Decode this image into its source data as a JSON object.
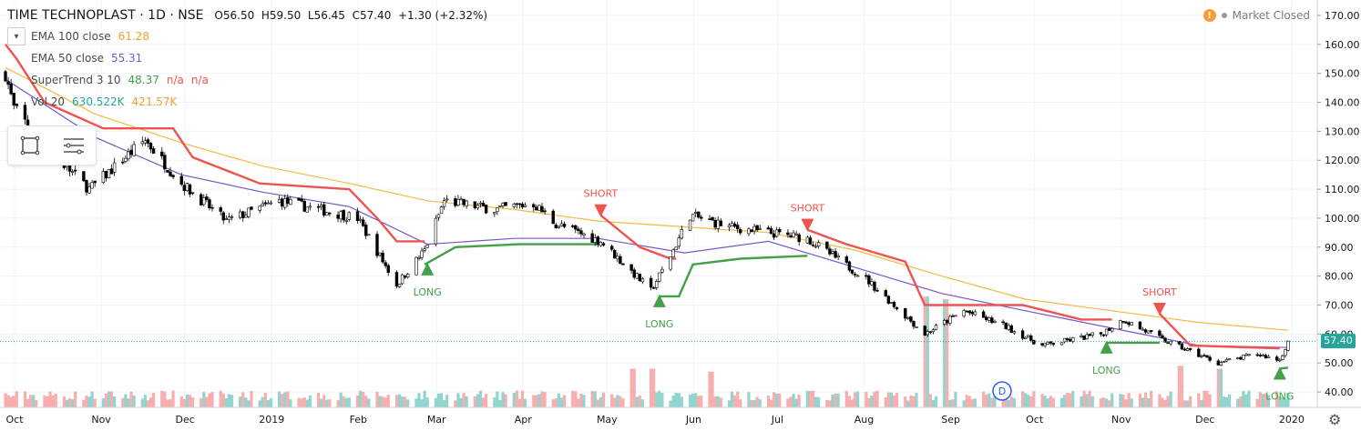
{
  "header": {
    "symbol_title": "TIME TECHNOPLAST · 1D · NSE",
    "open": "O56.50",
    "high": "H59.50",
    "low": "L56.45",
    "close": "C57.40",
    "change": "+1.30 (+2.32%)"
  },
  "indicators": [
    {
      "label": "EMA 100 close",
      "value": "61.28",
      "color": "#f0a030"
    },
    {
      "label": "EMA 50 close",
      "value": "55.31",
      "color": "#7b55c8"
    },
    {
      "label": "SuperTrend 3 10",
      "value": "48.37",
      "value2": "n/a",
      "value3": "n/a",
      "color": "#43a047"
    },
    {
      "label": "Vol 20",
      "value": "630.522K",
      "value2": "421.57K",
      "color": "#26a69a"
    }
  ],
  "market_status": "Market Closed",
  "last_price_tag": "57.40",
  "colors": {
    "up": "#26a69a",
    "down": "#ef5350",
    "candle": "#000000",
    "ema100": "#f5b942",
    "ema50": "#7b55c8",
    "st_up": "#43a047",
    "st_down": "#ef5350",
    "vol_up": "#7fcdc6",
    "vol_down": "#f5a0a0",
    "grid": "#f0f3fa"
  },
  "icons": {
    "toolbox_1": "select-rectangle-icon",
    "toolbox_2": "object-tree-icon",
    "settings": "gear-icon",
    "collapse": "chevron-down-icon",
    "alert": "alert-icon",
    "dividend": "dividend-marker-icon"
  },
  "dividend_marker": "D",
  "chart_data": {
    "type": "candlestick",
    "title": "TIME TECHNOPLAST · 1D · NSE",
    "y_ticks": [
      "170.00",
      "160.00",
      "150.00",
      "140.00",
      "130.00",
      "120.00",
      "110.00",
      "100.00",
      "90.00",
      "80.00",
      "70.00",
      "60.00",
      "50.00",
      "40.00"
    ],
    "x_tick_labels": [
      "Oct",
      "Nov",
      "Dec",
      "2019",
      "Feb",
      "Mar",
      "Apr",
      "May",
      "Jun",
      "Jul",
      "Aug",
      "Sep",
      "Oct",
      "Nov",
      "Dec",
      "2020"
    ],
    "ylim": [
      35,
      172
    ],
    "price_path": [
      [
        "2018-10-01",
        150
      ],
      [
        "2018-10-04",
        138
      ],
      [
        "2018-10-15",
        125
      ],
      [
        "2018-10-31",
        110
      ],
      [
        "2018-11-20",
        127
      ],
      [
        "2018-12-03",
        112
      ],
      [
        "2018-12-19",
        99
      ],
      [
        "2019-01-07",
        106
      ],
      [
        "2019-01-21",
        103
      ],
      [
        "2019-02-04",
        100
      ],
      [
        "2019-02-18",
        77
      ],
      [
        "2019-02-28",
        89
      ],
      [
        "2019-03-07",
        106
      ],
      [
        "2019-03-25",
        103
      ],
      [
        "2019-04-08",
        105
      ],
      [
        "2019-04-16",
        98
      ],
      [
        "2019-05-02",
        92
      ],
      [
        "2019-05-20",
        75
      ],
      [
        "2019-05-27",
        87
      ],
      [
        "2019-06-03",
        101
      ],
      [
        "2019-06-17",
        97
      ],
      [
        "2019-07-15",
        93
      ],
      [
        "2019-08-05",
        79
      ],
      [
        "2019-08-26",
        60
      ],
      [
        "2019-09-09",
        68
      ],
      [
        "2019-09-23",
        63
      ],
      [
        "2019-10-07",
        56
      ],
      [
        "2019-10-28",
        60
      ],
      [
        "2019-11-05",
        65
      ],
      [
        "2019-11-19",
        58
      ],
      [
        "2019-12-09",
        50
      ],
      [
        "2019-12-23",
        53
      ],
      [
        "2019-12-31",
        51
      ],
      [
        "2020-01-03",
        57.4
      ]
    ],
    "series": [
      {
        "name": "EMA 100 close",
        "values": [
          [
            "2018-10-01",
            152
          ],
          [
            "2018-11-02",
            136
          ],
          [
            "2018-12-03",
            126
          ],
          [
            "2019-01-01",
            118
          ],
          [
            "2019-02-01",
            112
          ],
          [
            "2019-03-01",
            106
          ],
          [
            "2019-04-01",
            103
          ],
          [
            "2019-05-01",
            99
          ],
          [
            "2019-06-01",
            97
          ],
          [
            "2019-07-01",
            95
          ],
          [
            "2019-08-01",
            89
          ],
          [
            "2019-09-01",
            80
          ],
          [
            "2019-10-01",
            72
          ],
          [
            "2019-11-01",
            68
          ],
          [
            "2019-12-02",
            64
          ],
          [
            "2020-01-03",
            61.28
          ]
        ]
      },
      {
        "name": "EMA 50 close",
        "values": [
          [
            "2018-10-01",
            148
          ],
          [
            "2018-11-02",
            128
          ],
          [
            "2018-12-03",
            115
          ],
          [
            "2019-01-01",
            109
          ],
          [
            "2019-02-01",
            104
          ],
          [
            "2019-03-01",
            91
          ],
          [
            "2019-04-01",
            93
          ],
          [
            "2019-05-01",
            93
          ],
          [
            "2019-06-01",
            88
          ],
          [
            "2019-07-01",
            92
          ],
          [
            "2019-08-01",
            83
          ],
          [
            "2019-09-01",
            74
          ],
          [
            "2019-10-01",
            68
          ],
          [
            "2019-11-01",
            62
          ],
          [
            "2019-12-02",
            56
          ],
          [
            "2020-01-03",
            55.31
          ]
        ]
      },
      {
        "name": "SuperTrend 3 10",
        "segments": [
          {
            "dir": "down",
            "points": [
              [
                "2018-10-01",
                160
              ],
              [
                "2018-10-05",
                155
              ],
              [
                "2018-10-15",
                140
              ],
              [
                "2018-11-05",
                131
              ],
              [
                "2018-11-30",
                131
              ],
              [
                "2018-12-07",
                121
              ],
              [
                "2018-12-31",
                112
              ],
              [
                "2019-02-01",
                110
              ],
              [
                "2019-02-11",
                100
              ],
              [
                "2019-02-18",
                92
              ],
              [
                "2019-02-28",
                92
              ]
            ]
          },
          {
            "dir": "up",
            "points": [
              [
                "2019-02-28",
                84
              ],
              [
                "2019-03-11",
                90
              ],
              [
                "2019-04-03",
                91
              ],
              [
                "2019-05-02",
                91
              ]
            ]
          },
          {
            "dir": "down",
            "points": [
              [
                "2019-05-02",
                101
              ],
              [
                "2019-05-16",
                90
              ],
              [
                "2019-05-27",
                86
              ],
              [
                "2019-05-29",
                86
              ]
            ]
          },
          {
            "dir": "up",
            "points": [
              [
                "2019-05-23",
                73
              ],
              [
                "2019-05-30",
                73
              ],
              [
                "2019-06-04",
                84
              ],
              [
                "2019-06-21",
                86
              ],
              [
                "2019-07-15",
                87
              ]
            ]
          },
          {
            "dir": "down",
            "points": [
              [
                "2019-07-15",
                96
              ],
              [
                "2019-07-29",
                91
              ],
              [
                "2019-08-19",
                85
              ],
              [
                "2019-08-26",
                70
              ],
              [
                "2019-09-30",
                70
              ],
              [
                "2019-10-21",
                65
              ],
              [
                "2019-11-01",
                65
              ]
            ]
          },
          {
            "dir": "up",
            "points": [
              [
                "2019-10-30",
                57
              ],
              [
                "2019-11-15",
                57
              ],
              [
                "2019-11-18",
                57
              ]
            ]
          },
          {
            "dir": "down",
            "points": [
              [
                "2019-11-18",
                67
              ],
              [
                "2019-11-29",
                56
              ],
              [
                "2019-12-31",
                55
              ]
            ]
          },
          {
            "dir": "up",
            "points": [
              [
                "2019-12-31",
                48
              ],
              [
                "2020-01-03",
                48.37
              ]
            ]
          }
        ]
      }
    ],
    "signals": [
      {
        "date": "2019-03-01",
        "type": "LONG",
        "price": 84
      },
      {
        "date": "2019-05-02",
        "type": "SHORT",
        "price": 101
      },
      {
        "date": "2019-05-23",
        "type": "LONG",
        "price": 73
      },
      {
        "date": "2019-07-15",
        "type": "SHORT",
        "price": 96
      },
      {
        "date": "2019-10-30",
        "type": "LONG",
        "price": 57
      },
      {
        "date": "2019-11-18",
        "type": "SHORT",
        "price": 67
      },
      {
        "date": "2019-12-31",
        "type": "LONG",
        "price": 48
      }
    ],
    "volume": {
      "baseline_price_axis": 37,
      "typical": "low",
      "spikes": [
        {
          "date": "2019-05-13",
          "level": 48
        },
        {
          "date": "2019-05-20",
          "level": 48
        },
        {
          "date": "2019-06-10",
          "level": 47
        },
        {
          "date": "2019-08-26",
          "level": 73
        },
        {
          "date": "2019-09-02",
          "level": 72
        },
        {
          "date": "2019-11-25",
          "level": 49
        },
        {
          "date": "2019-12-09",
          "level": 48
        }
      ]
    },
    "last_price": 57.4,
    "grid": true,
    "legend_position": "top-left"
  }
}
